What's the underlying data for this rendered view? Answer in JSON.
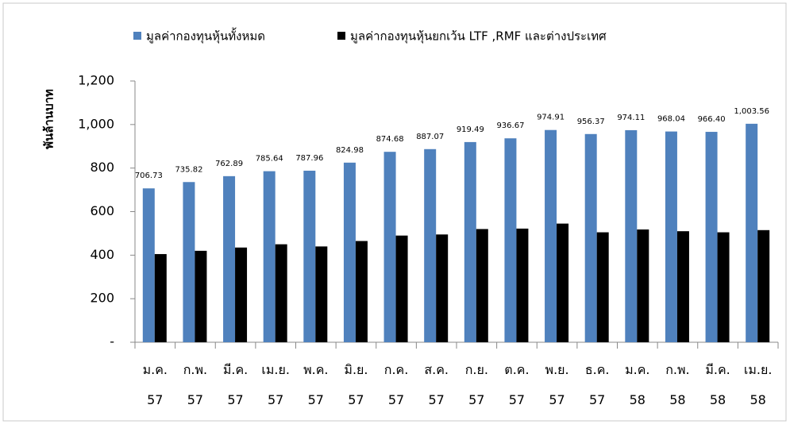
{
  "chart_data": {
    "type": "bar",
    "y_label": "พันล้านบาท",
    "categories": [
      "ม.ค. 57",
      "ก.พ. 57",
      "มี.ค. 57",
      "เม.ย. 57",
      "พ.ค. 57",
      "มิ.ย. 57",
      "ก.ค. 57",
      "ส.ค. 57",
      "ก.ย. 57",
      "ต.ค. 57",
      "พ.ย. 57",
      "ธ.ค. 57",
      "ม.ค. 58",
      "ก.พ. 58",
      "มี.ค. 58",
      "เม.ย. 58"
    ],
    "series": [
      {
        "name": "มูลค่ากองทุนหุ้นทั้งหมด",
        "color": "#4f81bd",
        "values": [
          706.73,
          735.82,
          762.89,
          785.64,
          787.96,
          824.98,
          874.68,
          887.07,
          919.49,
          936.67,
          974.91,
          956.37,
          974.11,
          968.04,
          966.4,
          1003.56
        ],
        "value_labels": [
          "706.73",
          "735.82",
          "762.89",
          "785.64",
          "787.96",
          "824.98",
          "874.68",
          "887.07",
          "919.49",
          "936.67",
          "974.91",
          "956.37",
          "974.11",
          "968.04",
          "966.40",
          "1,003.56"
        ]
      },
      {
        "name": "มูลค่ากองทุนหุ้นยกเว้น LTF ,RMF และต่างประเทศ",
        "color": "#000000",
        "values": [
          405,
          420,
          435,
          450,
          440,
          465,
          490,
          495,
          520,
          522,
          545,
          505,
          518,
          510,
          505,
          515
        ]
      }
    ],
    "ylim": [
      0,
      1200
    ],
    "yticks": [
      {
        "value": 0,
        "label": "-"
      },
      200,
      400,
      600,
      800,
      {
        "value": 1000,
        "label": "1,000"
      },
      {
        "value": 1200,
        "label": "1,200"
      }
    ]
  }
}
